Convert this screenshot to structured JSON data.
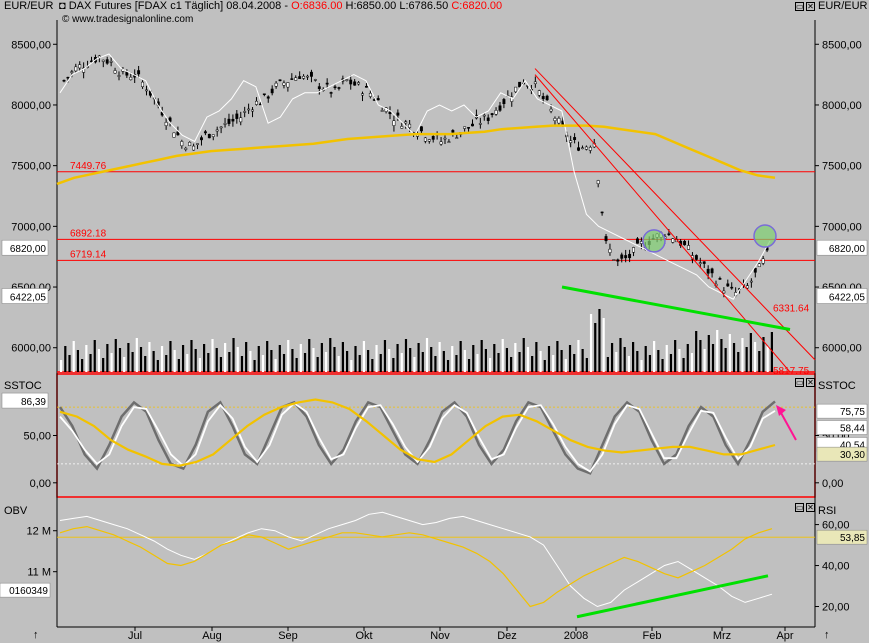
{
  "header": {
    "left_unit": "EUR/EUR",
    "right_unit": "EUR/EUR",
    "title": "DAX Futures [FDAX c1  Täglich] 08.04.2008 -",
    "open": "O:6836.00",
    "high": "H:6850.00",
    "low": "L:6786.50",
    "close": "C:6820.00",
    "source": "© www.tradesignalonline.com"
  },
  "colors": {
    "background": "#c0c0c0",
    "plot": "#ffffff",
    "candles": "#000000",
    "volume": "#000000",
    "sma": "#f2c200",
    "compare": "#ffffff",
    "hline": "#ff0000",
    "trend_channel": "#ff0000",
    "support": "#00e000",
    "arrow": "#ff1493",
    "highlight": "#7a6bd8"
  },
  "chart_data": [
    {
      "type": "candlestick",
      "panel": "price",
      "y_ticks": [
        "8500,00",
        "8000,00",
        "7500,00",
        "7000,00",
        "6500,00",
        "6000,00"
      ],
      "ylim": [
        5800,
        8700
      ],
      "x_ticks": [
        "Jul",
        "Aug",
        "Sep",
        "Okt",
        "Nov",
        "Dez",
        "2008",
        "Feb",
        "Mrz",
        "Apr"
      ],
      "last_close": "6820,00",
      "overlay_value": "6422,05",
      "levels": [
        {
          "label": "7449.76",
          "value": 7449.76
        },
        {
          "label": "6892.18",
          "value": 6892.18
        },
        {
          "label": "6719.14",
          "value": 6719.14
        }
      ],
      "channel_labels": [
        {
          "label": "6331.64",
          "value": 6331.64
        },
        {
          "label": "5817.75",
          "value": 5817.75
        }
      ],
      "close_series": [
        8200,
        8300,
        8350,
        8400,
        8350,
        8250,
        8250,
        8150,
        8000,
        7850,
        7700,
        7650,
        7750,
        7800,
        7850,
        7900,
        8000,
        8050,
        8150,
        8200,
        8250,
        8200,
        8150,
        8100,
        8200,
        8150,
        8100,
        8000,
        7900,
        7850,
        7800,
        7750,
        7700,
        7750,
        7800,
        7850,
        7900,
        8000,
        8100,
        8200,
        8150,
        8000,
        7850,
        7700,
        7650,
        7700,
        6850,
        6700,
        6750,
        6850,
        6900,
        6950,
        6900,
        6800,
        6700,
        6600,
        6500,
        6450,
        6500,
        6650,
        6820
      ],
      "sma_series": [
        7350,
        7400,
        7430,
        7460,
        7490,
        7520,
        7550,
        7580,
        7600,
        7620,
        7630,
        7640,
        7650,
        7660,
        7670,
        7680,
        7700,
        7720,
        7730,
        7740,
        7750,
        7760,
        7760,
        7760,
        7770,
        7780,
        7800,
        7810,
        7820,
        7830,
        7830,
        7830,
        7820,
        7800,
        7780,
        7760,
        7700,
        7640,
        7580,
        7520,
        7460,
        7420,
        7400
      ],
      "compare_series": [
        8100,
        8250,
        8300,
        8380,
        8420,
        8300,
        8250,
        8200,
        8000,
        7850,
        7750,
        7700,
        7900,
        7950,
        8050,
        8200,
        8150,
        7850,
        7900,
        8050,
        8100,
        8100,
        8150,
        8200,
        8250,
        8200,
        8000,
        7950,
        7850,
        7750,
        7950,
        8000,
        7950,
        8000,
        7900,
        7950,
        8100,
        8050,
        8200,
        8050,
        8000,
        7950,
        7450,
        7100,
        7000,
        6950,
        6900,
        6850,
        6800,
        6750,
        6700,
        6650,
        6600,
        6500,
        6450,
        6400,
        6550,
        6700,
        6880
      ]
    },
    {
      "type": "line",
      "panel": "oscillator",
      "title": "SSTOC",
      "y_ticks": [
        "50,00",
        "0,00"
      ],
      "ylim": [
        -15,
        115
      ],
      "current": "86,39",
      "right_values": [
        "75,75",
        "58,44",
        "40,54",
        "30,30"
      ],
      "series": [
        {
          "values": [
            80,
            60,
            30,
            15,
            40,
            70,
            85,
            75,
            45,
            20,
            15,
            40,
            75,
            85,
            60,
            30,
            20,
            50,
            80,
            85,
            70,
            40,
            20,
            35,
            65,
            85,
            80,
            55,
            30,
            20,
            45,
            75,
            85,
            70,
            40,
            20,
            35,
            65,
            85,
            80,
            55,
            30,
            15,
            10,
            40,
            70,
            85,
            75,
            45,
            20,
            30,
            60,
            80,
            70,
            40,
            20,
            45,
            75,
            86
          ]
        },
        {
          "values": [
            70,
            55,
            35,
            20,
            30,
            60,
            80,
            78,
            55,
            30,
            18,
            30,
            65,
            82,
            68,
            38,
            22,
            40,
            72,
            84,
            75,
            48,
            25,
            30,
            58,
            80,
            82,
            62,
            38,
            22,
            38,
            68,
            82,
            74,
            48,
            25,
            30,
            58,
            80,
            82,
            62,
            38,
            20,
            12,
            30,
            62,
            82,
            78,
            52,
            26,
            26,
            52,
            76,
            74,
            48,
            25,
            38,
            68,
            76
          ]
        },
        {
          "values": [
            75,
            70,
            60,
            45,
            35,
            28,
            20,
            18,
            22,
            30,
            45,
            60,
            72,
            80,
            85,
            88,
            85,
            78,
            65,
            50,
            35,
            25,
            22,
            30,
            45,
            60,
            70,
            72,
            65,
            55,
            45,
            38,
            34,
            32,
            34,
            36,
            38,
            38,
            34,
            30,
            30,
            35,
            40
          ]
        }
      ]
    },
    {
      "type": "line",
      "panel": "obv_rsi",
      "title": "OBV",
      "right_title": "RSI",
      "y_ticks_left": [
        "12 M",
        "11 M"
      ],
      "y_ticks_right": [
        "60,00",
        "40,00",
        "20,00"
      ],
      "ylim": [
        10,
        72
      ],
      "left_value": "0160349",
      "rsi_current": "53,85",
      "series": [
        {
          "name": "RSI",
          "values": [
            62,
            63,
            64,
            62,
            60,
            58,
            55,
            52,
            48,
            45,
            43,
            46,
            50,
            53,
            56,
            58,
            57,
            54,
            52,
            55,
            58,
            60,
            62,
            65,
            66,
            64,
            62,
            60,
            61,
            63,
            64,
            62,
            60,
            58,
            56,
            54,
            50,
            40,
            30,
            24,
            20,
            22,
            28,
            32,
            36,
            40,
            42,
            38,
            34,
            30,
            25,
            22,
            24,
            26
          ]
        },
        {
          "name": "OBV",
          "values": [
            56,
            58,
            59,
            57,
            55,
            52,
            49,
            45,
            41,
            40,
            42,
            46,
            50,
            52,
            55,
            54,
            51,
            48,
            50,
            52,
            54,
            56,
            56,
            55,
            54,
            55,
            56,
            55,
            53,
            51,
            49,
            46,
            42,
            36,
            28,
            20,
            22,
            27,
            31,
            35,
            38,
            41,
            44,
            42,
            39,
            36,
            34,
            37,
            40,
            44,
            48,
            53,
            56,
            58
          ]
        }
      ]
    }
  ]
}
